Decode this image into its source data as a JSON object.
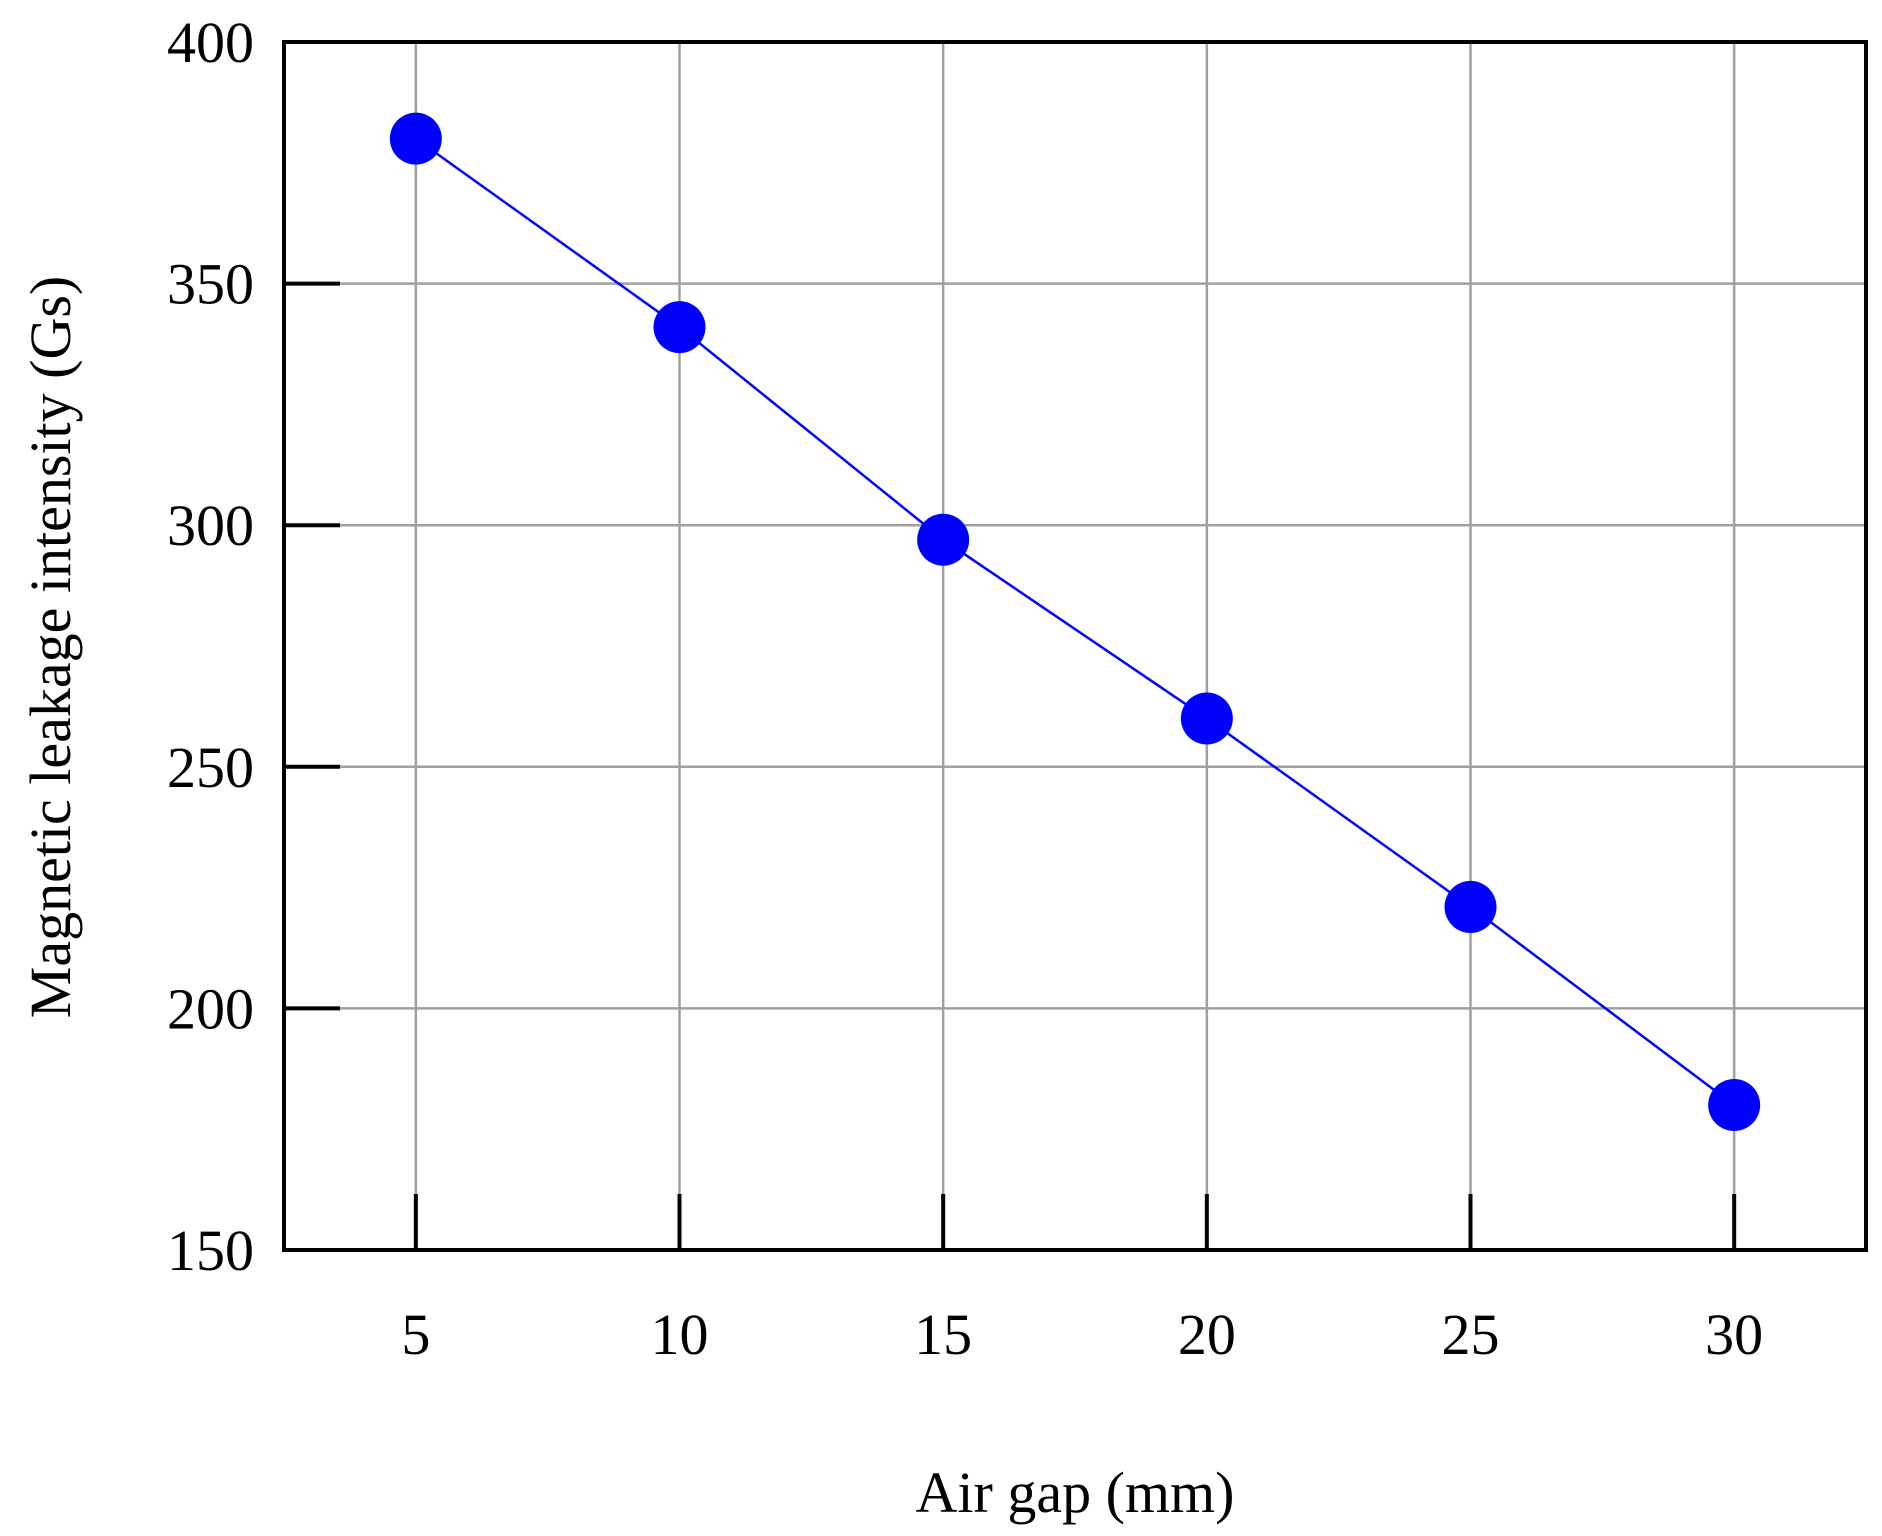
{
  "chart_data": {
    "type": "scatter",
    "x": [
      5,
      10,
      15,
      20,
      25,
      30
    ],
    "series": [
      {
        "values": [
          380,
          341,
          297,
          260,
          221,
          180
        ],
        "color": "#0000ff",
        "marker": "circle",
        "line": true
      }
    ],
    "xlabel": "Air gap (mm)",
    "ylabel": "Magnetic leakage intensity (Gs)",
    "xlim": [
      2.5,
      32.5
    ],
    "ylim": [
      150,
      400
    ],
    "xticks": [
      5,
      10,
      15,
      20,
      25,
      30
    ],
    "yticks": [
      150,
      200,
      250,
      300,
      350,
      400
    ],
    "grid": true,
    "legend": "none"
  }
}
